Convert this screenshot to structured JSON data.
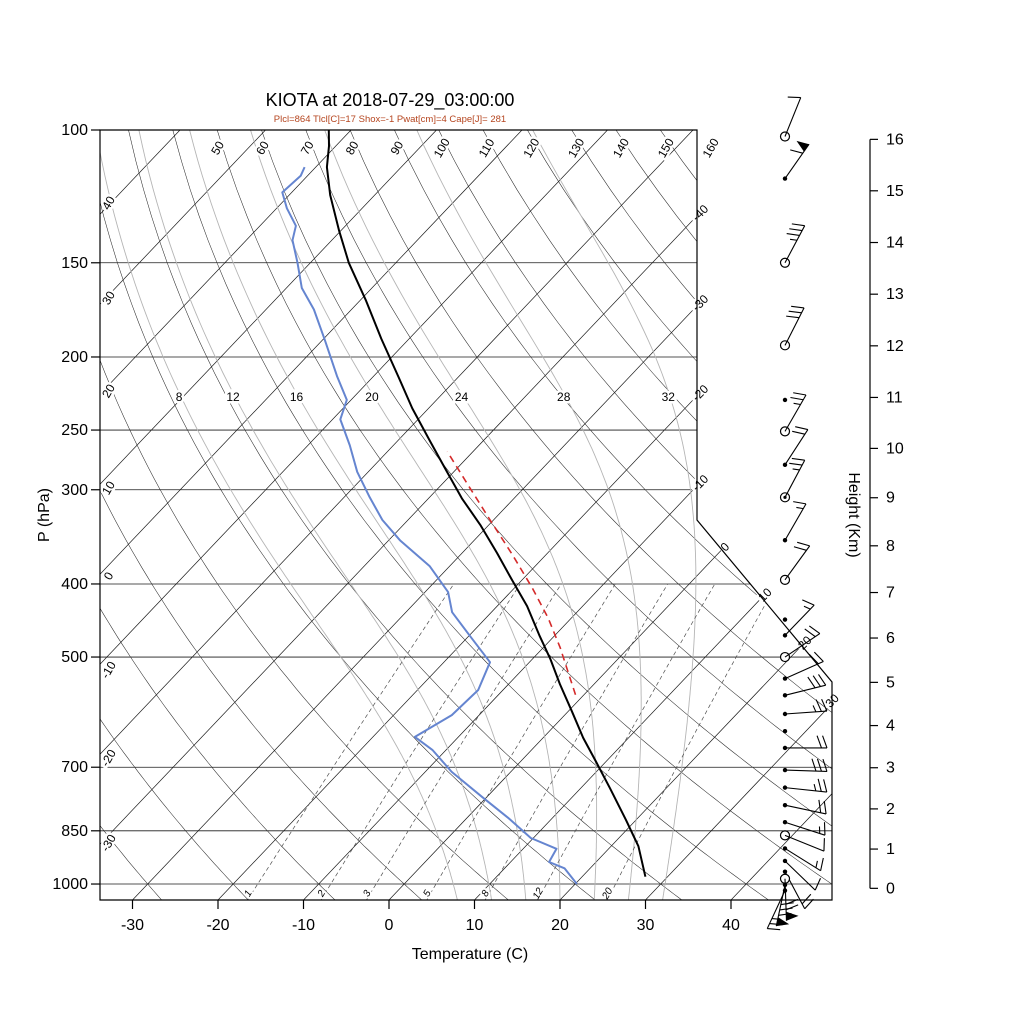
{
  "title": "KIOTA at 2018-07-29_03:00:00",
  "subtitle": "Plcl=864 Tlcl[C]=17 Shox=-1 Pwat[cm]=4 Cape[J]= 281",
  "station": "KIOTA",
  "datetime": "2018-07-29_03:00:00",
  "indices": {
    "Plcl": 864,
    "Tlcl_C": 17,
    "Shox": -1,
    "Pwat_cm": 4,
    "Cape_J": 281
  },
  "axes": {
    "pressure_label": "P (hPa)",
    "temperature_label": "Temperature (C)",
    "height_label": "Height (Km)",
    "pressure_ticks": [
      100,
      150,
      200,
      250,
      300,
      400,
      500,
      700,
      850,
      1000
    ],
    "temperature_ticks": [
      -30,
      -20,
      -10,
      0,
      10,
      20,
      30,
      40
    ],
    "height_ticks": [
      0,
      1,
      2,
      3,
      4,
      5,
      6,
      7,
      8,
      9,
      10,
      11,
      12,
      13,
      14,
      15,
      16
    ]
  },
  "background": {
    "isotherms": [
      -110,
      -100,
      -90,
      -80,
      -70,
      -60,
      -50,
      -40,
      -30,
      -20,
      -10,
      0,
      10,
      20,
      30,
      40
    ],
    "dry_adiabats": [
      -30,
      -20,
      -10,
      0,
      10,
      20,
      30,
      40,
      50,
      60,
      70,
      80,
      90,
      100,
      110,
      120,
      130,
      140,
      150,
      160
    ],
    "theta_top_labels": [
      50,
      60,
      70,
      80,
      90,
      100,
      110,
      120,
      130,
      140,
      150,
      160
    ],
    "left_edge_labels": [
      [
        40,
        205
      ],
      [
        30,
        300
      ],
      [
        20,
        393
      ],
      [
        10,
        490
      ],
      [
        0,
        578
      ],
      [
        -10,
        672
      ],
      [
        -20,
        760
      ],
      [
        -30,
        845
      ]
    ],
    "right_edge_labels": [
      -40,
      -30,
      -20,
      -10,
      0,
      10,
      20,
      30
    ],
    "moist_adiabats": [
      8,
      12,
      16,
      20,
      24,
      28,
      32
    ],
    "mixing_ratio": [
      1,
      2,
      3,
      5,
      8,
      12,
      20
    ]
  },
  "colors": {
    "temperature": "#000000",
    "dewpoint": "#6585d0",
    "parcel": "#d42a2a",
    "subtitle": "#b5451f",
    "moist_adiabat": "#b5b5b5",
    "grid": "#1a1a1a"
  },
  "chart_data": {
    "type": "line",
    "subtype": "skewt_log_p_sounding",
    "title": "KIOTA at 2018-07-29_03:00:00",
    "pressure_range": [
      100,
      1050
    ],
    "temperature_profile": [
      [
        978,
        27.4
      ],
      [
        891,
        23.2
      ],
      [
        822,
        18.8
      ],
      [
        746,
        13.4
      ],
      [
        689,
        8.9
      ],
      [
        640,
        4.7
      ],
      [
        591,
        0.5
      ],
      [
        543,
        -4.0
      ],
      [
        504,
        -7.8
      ],
      [
        469,
        -11.7
      ],
      [
        428,
        -16.5
      ],
      [
        395,
        -21.2
      ],
      [
        364,
        -25.9
      ],
      [
        334,
        -31.0
      ],
      [
        308,
        -36.1
      ],
      [
        282,
        -41.2
      ],
      [
        259,
        -46.1
      ],
      [
        234,
        -51.9
      ],
      [
        213,
        -56.9
      ],
      [
        189,
        -63.3
      ],
      [
        168,
        -69.4
      ],
      [
        150,
        -75.5
      ],
      [
        136,
        -80.2
      ],
      [
        122,
        -85.2
      ],
      [
        112,
        -88.7
      ],
      [
        105,
        -90.8
      ],
      [
        100,
        -92.6
      ]
    ],
    "dewpoint_profile": [
      [
        1000,
        20.2
      ],
      [
        953,
        17.0
      ],
      [
        935,
        14.5
      ],
      [
        898,
        13.9
      ],
      [
        869,
        9.7
      ],
      [
        817,
        4.8
      ],
      [
        767,
        -0.5
      ],
      [
        710,
        -6.9
      ],
      [
        664,
        -11.6
      ],
      [
        638,
        -15.1
      ],
      [
        597,
        -13.2
      ],
      [
        553,
        -12.9
      ],
      [
        508,
        -14.6
      ],
      [
        470,
        -19.7
      ],
      [
        436,
        -24.6
      ],
      [
        410,
        -27.3
      ],
      [
        379,
        -32.3
      ],
      [
        350,
        -38.7
      ],
      [
        329,
        -43.0
      ],
      [
        307,
        -47.0
      ],
      [
        284,
        -51.3
      ],
      [
        262,
        -55.1
      ],
      [
        242,
        -59.1
      ],
      [
        228,
        -60.5
      ],
      [
        212,
        -64.3
      ],
      [
        190,
        -69.7
      ],
      [
        173,
        -74.4
      ],
      [
        162,
        -78.2
      ],
      [
        150,
        -81.5
      ],
      [
        140,
        -84.6
      ],
      [
        134,
        -85.8
      ],
      [
        127,
        -88.8
      ],
      [
        121,
        -91.1
      ],
      [
        115,
        -90.8
      ],
      [
        112,
        -91.3
      ]
    ],
    "parcel_path": [
      [
        561,
        -1.0
      ],
      [
        533,
        -3.5
      ],
      [
        486,
        -8.0
      ],
      [
        444,
        -12.7
      ],
      [
        405,
        -17.9
      ],
      [
        366,
        -23.9
      ],
      [
        329,
        -30.4
      ],
      [
        296,
        -36.8
      ],
      [
        267,
        -43.0
      ]
    ],
    "wind_barbs": [
      {
        "p": 102,
        "marker": "circle",
        "dir": 22,
        "full": 1,
        "half": 0,
        "pennant": 0
      },
      {
        "p": 116,
        "marker": "dot",
        "dir": 35,
        "full": 1,
        "half": 0,
        "pennant": 1
      },
      {
        "p": 150,
        "marker": "circle",
        "dir": 28,
        "full": 3,
        "half": 1,
        "pennant": 0
      },
      {
        "p": 193,
        "marker": "circle",
        "dir": 27,
        "full": 3,
        "half": 0,
        "pennant": 0
      },
      {
        "p": 228,
        "marker": "dot",
        "dir": 0,
        "full": 0,
        "half": 0,
        "pennant": 0
      },
      {
        "p": 251,
        "marker": "circle",
        "dir": 30,
        "full": 2,
        "half": 1,
        "pennant": 0
      },
      {
        "p": 278,
        "marker": "dot",
        "dir": 33,
        "full": 2,
        "half": 0,
        "pennant": 0
      },
      {
        "p": 307,
        "marker": "circledot",
        "dir": 28,
        "full": 2,
        "half": 1,
        "pennant": 0
      },
      {
        "p": 350,
        "marker": "dot",
        "dir": 30,
        "full": 1,
        "half": 1,
        "pennant": 0
      },
      {
        "p": 395,
        "marker": "circle",
        "dir": 36,
        "full": 2,
        "half": 0,
        "pennant": 0
      },
      {
        "p": 446,
        "marker": "dot",
        "dir": 0,
        "full": 0,
        "half": 0,
        "pennant": 0
      },
      {
        "p": 468,
        "marker": "dot",
        "dir": 44,
        "full": 1,
        "half": 1,
        "pennant": 0
      },
      {
        "p": 500,
        "marker": "circle",
        "dir": 56,
        "full": 2,
        "half": 0,
        "pennant": 0
      },
      {
        "p": 534,
        "marker": "dot",
        "dir": 66,
        "full": 2,
        "half": 0,
        "pennant": 0
      },
      {
        "p": 562,
        "marker": "dot",
        "dir": 76,
        "full": 3,
        "half": 0,
        "pennant": 0
      },
      {
        "p": 595,
        "marker": "dot",
        "dir": 86,
        "full": 2,
        "half": 1,
        "pennant": 0
      },
      {
        "p": 627,
        "marker": "dot",
        "dir": 0,
        "full": 0,
        "half": 0,
        "pennant": 0
      },
      {
        "p": 660,
        "marker": "dot",
        "dir": 90,
        "full": 2,
        "half": 0,
        "pennant": 0
      },
      {
        "p": 706,
        "marker": "dot",
        "dir": 92,
        "full": 3,
        "half": 0,
        "pennant": 0
      },
      {
        "p": 745,
        "marker": "dot",
        "dir": 96,
        "full": 2,
        "half": 1,
        "pennant": 0
      },
      {
        "p": 786,
        "marker": "dot",
        "dir": 102,
        "full": 2,
        "half": 0,
        "pennant": 0
      },
      {
        "p": 828,
        "marker": "dot",
        "dir": 108,
        "full": 1,
        "half": 1,
        "pennant": 0
      },
      {
        "p": 862,
        "marker": "circle",
        "dir": 112,
        "full": 1,
        "half": 0,
        "pennant": 0
      },
      {
        "p": 897,
        "marker": "dot",
        "dir": 122,
        "full": 1,
        "half": 1,
        "pennant": 0
      },
      {
        "p": 932,
        "marker": "dot",
        "dir": 134,
        "full": 1,
        "half": 0,
        "pennant": 0
      },
      {
        "p": 963,
        "marker": "dot",
        "dir": 152,
        "full": 2,
        "half": 0,
        "pennant": 0
      },
      {
        "p": 984,
        "marker": "circle",
        "dir": 178,
        "full": 2,
        "half": 0,
        "pennant": 1
      },
      {
        "p": 1003,
        "marker": "dot",
        "dir": 192,
        "full": 3,
        "half": 0,
        "pennant": 1
      },
      {
        "p": 1020,
        "marker": "dot",
        "dir": 205,
        "full": 2,
        "half": 1,
        "pennant": 0
      }
    ]
  }
}
